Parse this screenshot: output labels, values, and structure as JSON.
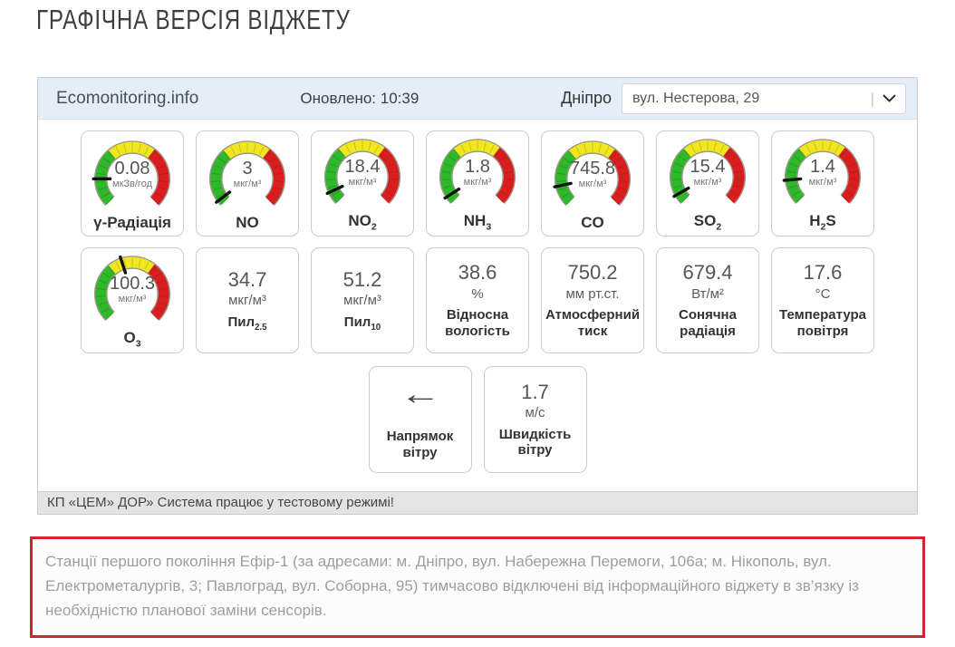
{
  "page": {
    "title": "ГРАФІЧНА ВЕРСІЯ ВІДЖЕТУ"
  },
  "widget": {
    "brand": "Ecomonitoring.info",
    "updated": "Оновлено: 10:39",
    "city": "Дніпро",
    "station": "вул. Нестерова, 29",
    "footer": "КП «ЦЕМ» ДОР» Система працює у тестовому режимі!",
    "gauge_config": {
      "start_deg": 135,
      "total_deg": 270,
      "green_end": 95,
      "yellow_end": 172
    },
    "rows": [
      [
        {
          "type": "gauge",
          "id": "gamma-radiation",
          "value": "0.08",
          "unit": "мкЗв/год",
          "label": [
            {
              "t": "γ-Радіація"
            }
          ],
          "needle_deg": 45
        },
        {
          "type": "gauge",
          "id": "no",
          "value": "3",
          "unit": "мкг/м³",
          "label": [
            {
              "t": "NO"
            }
          ],
          "needle_deg": 8
        },
        {
          "type": "gauge",
          "id": "no2",
          "value": "18.4",
          "unit": "мкг/м³",
          "label": [
            {
              "t": "NO"
            },
            {
              "t": "2",
              "sub": true
            }
          ],
          "needle_deg": 20
        },
        {
          "type": "gauge",
          "id": "nh3",
          "value": "1.8",
          "unit": "мкг/м³",
          "label": [
            {
              "t": "NH"
            },
            {
              "t": "3",
              "sub": true
            }
          ],
          "needle_deg": 12
        },
        {
          "type": "gauge",
          "id": "co",
          "value": "745.8",
          "unit": "мкг/м³",
          "label": [
            {
              "t": "CO"
            }
          ],
          "needle_deg": 33
        },
        {
          "type": "gauge",
          "id": "so2",
          "value": "15.4",
          "unit": "мкг/м³",
          "label": [
            {
              "t": "SO"
            },
            {
              "t": "2",
              "sub": true
            }
          ],
          "needle_deg": 15
        },
        {
          "type": "gauge",
          "id": "h2s",
          "value": "1.4",
          "unit": "мкг/м³",
          "label": [
            {
              "t": "H"
            },
            {
              "t": "2",
              "sub": true
            },
            {
              "t": "S"
            }
          ],
          "needle_deg": 40
        }
      ],
      [
        {
          "type": "gauge",
          "id": "o3",
          "value": "100.3",
          "unit": "мкг/м³",
          "label": [
            {
              "t": "O"
            },
            {
              "t": "3",
              "sub": true
            }
          ],
          "needle_deg": 117
        },
        {
          "type": "text",
          "id": "dust-pm2-5",
          "value": "34.7",
          "unit": "мкг/м³",
          "label": [
            {
              "t": "Пил"
            },
            {
              "t": "2.5",
              "sub": true
            }
          ]
        },
        {
          "type": "text",
          "id": "dust-pm10",
          "value": "51.2",
          "unit": "мкг/м³",
          "label": [
            {
              "t": "Пил"
            },
            {
              "t": "10",
              "sub": true
            }
          ]
        },
        {
          "type": "text",
          "id": "humidity",
          "value": "38.6",
          "unit": "%",
          "label": [
            {
              "t": "Відносна вологість"
            }
          ]
        },
        {
          "type": "text",
          "id": "pressure",
          "value": "750.2",
          "unit": "мм рт.ст.",
          "label": [
            {
              "t": "Атмосферний тиск"
            }
          ]
        },
        {
          "type": "text",
          "id": "solar-radiation",
          "value": "679.4",
          "unit": "Вт/м²",
          "label": [
            {
              "t": "Сонячна радіація"
            }
          ]
        },
        {
          "type": "text",
          "id": "air-temperature",
          "value": "17.6",
          "unit": "°C",
          "label": [
            {
              "t": "Температура повітря"
            }
          ]
        }
      ],
      [
        {
          "type": "arrow",
          "id": "wind-direction",
          "arrow": "←",
          "label": [
            {
              "t": "Напрямок вітру"
            }
          ]
        },
        {
          "type": "text",
          "id": "wind-speed",
          "value": "1.7",
          "unit": "м/с",
          "label": [
            {
              "t": "Швидкість вітру"
            }
          ]
        }
      ]
    ]
  },
  "notice": {
    "text": "Станції першого покоління Ефір-1 (за адресами: м. Дніпро, вул. Набережна Перемоги, 106а; м. Нікополь, вул. Електрометалургів, 3; Павлоград, вул. Соборна, 95) тимчасово відключені від інформаційного віджету в зв’язку із необхідністю планової заміни сенсорів."
  },
  "colors": {
    "header_bg": "#e3eef8",
    "gauge_green": "#2eb82a",
    "gauge_yellow": "#f2e71e",
    "gauge_red": "#da1e1e",
    "gauge_ring": "#9b968c",
    "needle": "#111111",
    "notice_border": "#cf2630"
  }
}
